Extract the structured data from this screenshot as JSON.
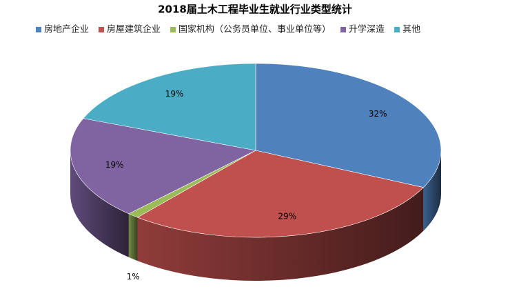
{
  "chart_data": {
    "type": "pie3d",
    "title": "2018届土木工程毕业生就业行业类型统计",
    "categories": [
      "房地产企业",
      "房屋建筑企业",
      "国家机构（公务员单位、事业单位等）",
      "升学深造",
      "其他"
    ],
    "values": [
      32,
      29,
      1,
      19,
      19
    ],
    "value_labels": [
      "32%",
      "29%",
      "1%",
      "19%",
      "19%"
    ],
    "colors": [
      "#4f81bd",
      "#c0504d",
      "#9bbb59",
      "#8064a2",
      "#4bacc6"
    ],
    "legend": "top"
  }
}
